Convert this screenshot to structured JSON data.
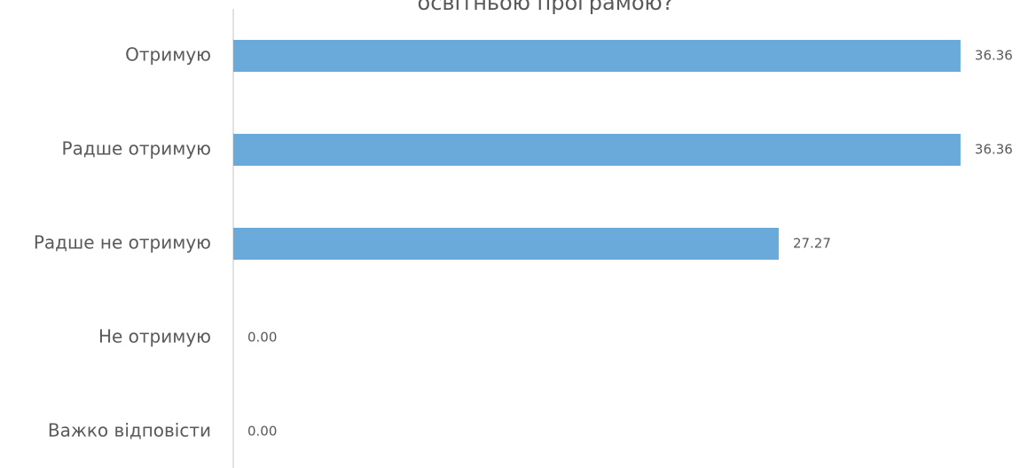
{
  "chart_data": {
    "type": "bar",
    "orientation": "horizontal",
    "title": "освітньою програмою?",
    "categories": [
      "Отримую",
      "Радше отримую",
      "Радше не отримую",
      "Не отримую",
      "Важко відповісти"
    ],
    "values": [
      36.36,
      36.36,
      27.27,
      0,
      0
    ],
    "value_labels": [
      "36.36",
      "36.36",
      "27.27",
      "0.00",
      "0.00"
    ],
    "color": "#6aaadb",
    "xlim": [
      0,
      40
    ]
  }
}
